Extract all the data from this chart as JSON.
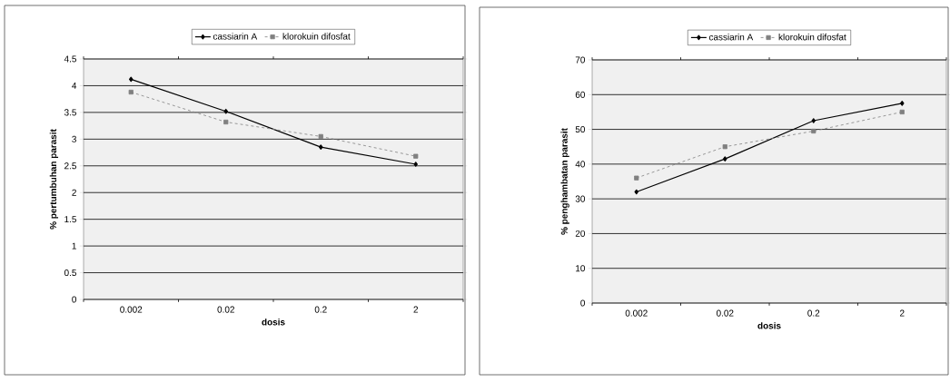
{
  "chart_data": [
    {
      "type": "line",
      "xlabel": "dosis",
      "ylabel": "% pertumbuhan parasit",
      "categories": [
        "0.002",
        "0.02",
        "0.2",
        "2"
      ],
      "ylim": [
        0,
        4.5
      ],
      "yticks": [
        0,
        0.5,
        1,
        1.5,
        2,
        2.5,
        3,
        3.5,
        4,
        4.5
      ],
      "grid": "y",
      "legend": "top",
      "series": [
        {
          "name": "cassiarin A",
          "color": "#000000",
          "marker": "diamond",
          "line_style": "solid",
          "values": [
            4.12,
            3.52,
            2.85,
            2.53
          ]
        },
        {
          "name": "klorokuin difosfat",
          "color": "#808080",
          "marker": "square",
          "line_style": "dashed",
          "values": [
            3.88,
            3.32,
            3.05,
            2.68
          ]
        }
      ]
    },
    {
      "type": "line",
      "xlabel": "dosis",
      "ylabel": "% penghambatan parasit",
      "categories": [
        "0.002",
        "0.02",
        "0.2",
        "2"
      ],
      "ylim": [
        0,
        70
      ],
      "yticks": [
        0,
        10,
        20,
        30,
        40,
        50,
        60,
        70
      ],
      "grid": "y",
      "legend": "top",
      "series": [
        {
          "name": "cassiarin A",
          "color": "#000000",
          "marker": "diamond",
          "line_style": "solid",
          "values": [
            32,
            41.5,
            52.5,
            57.5
          ]
        },
        {
          "name": "klorokuin difosfat",
          "color": "#808080",
          "marker": "square",
          "line_style": "dashed",
          "values": [
            36,
            45,
            49.5,
            55
          ]
        }
      ]
    }
  ]
}
